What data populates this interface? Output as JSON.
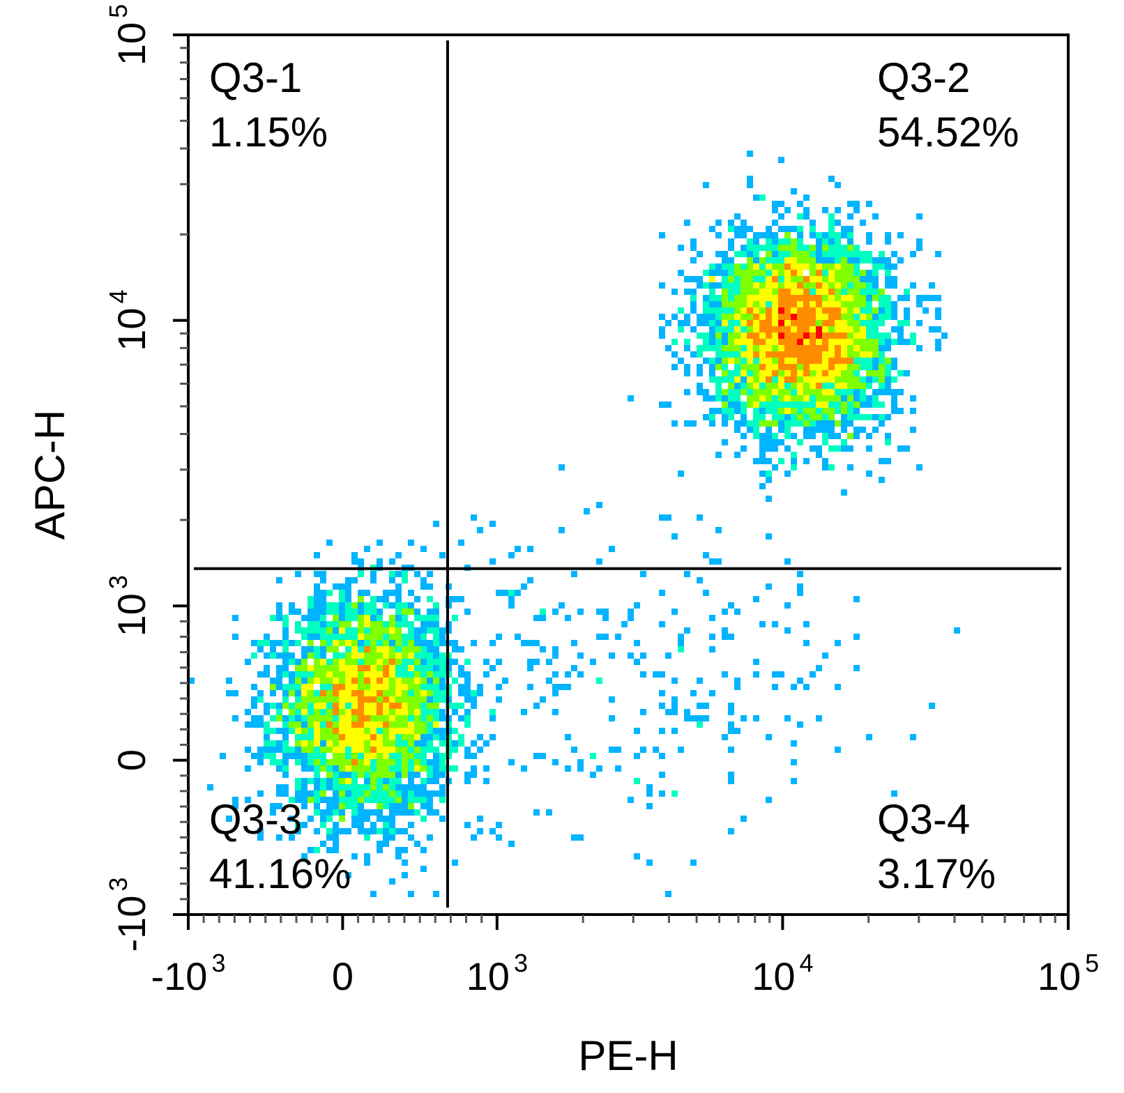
{
  "chart_data": {
    "type": "scatter",
    "subtype": "flow-cytometry density dot plot with quadrant gate",
    "xlabel": "PE-H",
    "ylabel": "APC-H",
    "scale": "biexponential (logicle)",
    "xlim": [
      -1000,
      100000
    ],
    "ylim": [
      -1000,
      100000
    ],
    "x_ticks": [
      {
        "value": -1000,
        "base": "-10",
        "exp": "3"
      },
      {
        "value": 0,
        "base": "0",
        "exp": ""
      },
      {
        "value": 1000,
        "base": "10",
        "exp": "3"
      },
      {
        "value": 10000,
        "base": "10",
        "exp": "4"
      },
      {
        "value": 100000,
        "base": "10",
        "exp": "5"
      }
    ],
    "y_ticks": [
      {
        "value": -1000,
        "base": "-10",
        "exp": "3"
      },
      {
        "value": 0,
        "base": "0",
        "exp": ""
      },
      {
        "value": 1000,
        "base": "10",
        "exp": "3"
      },
      {
        "value": 10000,
        "base": "10",
        "exp": "4"
      },
      {
        "value": 100000,
        "base": "10",
        "exp": "5"
      }
    ],
    "gate": {
      "x": 680,
      "y": 1350
    },
    "quadrants": [
      {
        "name": "Q3-1",
        "percent": "1.15%",
        "position": "top-left"
      },
      {
        "name": "Q3-2",
        "percent": "54.52%",
        "position": "top-right"
      },
      {
        "name": "Q3-3",
        "percent": "41.16%",
        "position": "bottom-left"
      },
      {
        "name": "Q3-4",
        "percent": "3.17%",
        "position": "bottom-right"
      }
    ],
    "populations": [
      {
        "center_x": 150,
        "center_y": 350,
        "fraction": 0.41
      },
      {
        "center_x": 11500,
        "center_y": 9000,
        "fraction": 0.55
      },
      {
        "center_x": 3000,
        "center_y": 600,
        "fraction": 0.03
      }
    ],
    "colormap": [
      "#0000ff",
      "#00b4ff",
      "#00ffc0",
      "#7fff00",
      "#ffff00",
      "#ff8c00",
      "#ff0000"
    ],
    "grid": false,
    "legend": "none"
  }
}
